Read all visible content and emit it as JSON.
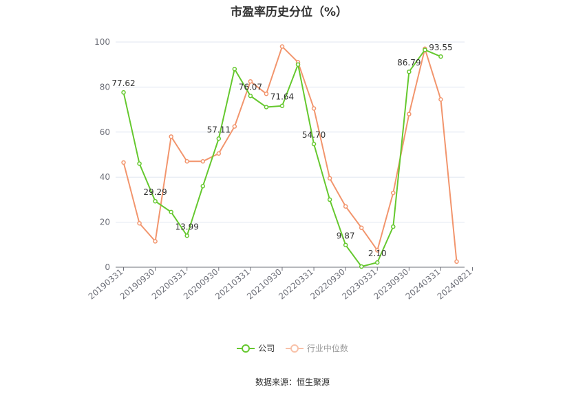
{
  "chart_data": {
    "type": "line",
    "title": "市盈率历史分位（%）",
    "xlabel": "",
    "ylabel": "",
    "ylim": [
      0,
      100
    ],
    "yticks": [
      0,
      20,
      40,
      60,
      80,
      100
    ],
    "x_tick_labels": [
      "20190331",
      "20190930",
      "20200331",
      "20200930",
      "20210331",
      "20210930",
      "20220331",
      "20220930",
      "20230331",
      "20230930",
      "20240331",
      "20240821"
    ],
    "x_points": 22,
    "grid": "horizontal",
    "legend_position": "bottom",
    "series": [
      {
        "name": "公司",
        "color": "#65c82e",
        "values": [
          77.62,
          46.0,
          29.29,
          24.5,
          13.99,
          36.0,
          57.11,
          88.0,
          76.07,
          71.1,
          71.64,
          90.0,
          54.7,
          30.0,
          9.87,
          0.3,
          2.1,
          18.0,
          86.79,
          96.5,
          93.55
        ],
        "labels": {
          "0": "77.62",
          "2": "29.29",
          "4": "13.99",
          "6": "57.11",
          "8": "76.07",
          "10": "71.64",
          "12": "54.70",
          "14": "9.87",
          "16": "2.10",
          "18": "86.79",
          "20": "93.55"
        }
      },
      {
        "name": "行业中位数",
        "color": "#f2956d",
        "values": [
          46.5,
          19.5,
          11.5,
          58.0,
          47.0,
          47.0,
          50.5,
          62.5,
          82.5,
          77.0,
          98.0,
          91.0,
          70.5,
          39.5,
          27.0,
          17.5,
          7.5,
          33.0,
          68.0,
          97.0,
          74.5,
          2.5
        ]
      }
    ]
  },
  "legend": {
    "company_label": "公司",
    "industry_label": "行业中位数"
  },
  "source": "数据来源：恒生聚源"
}
